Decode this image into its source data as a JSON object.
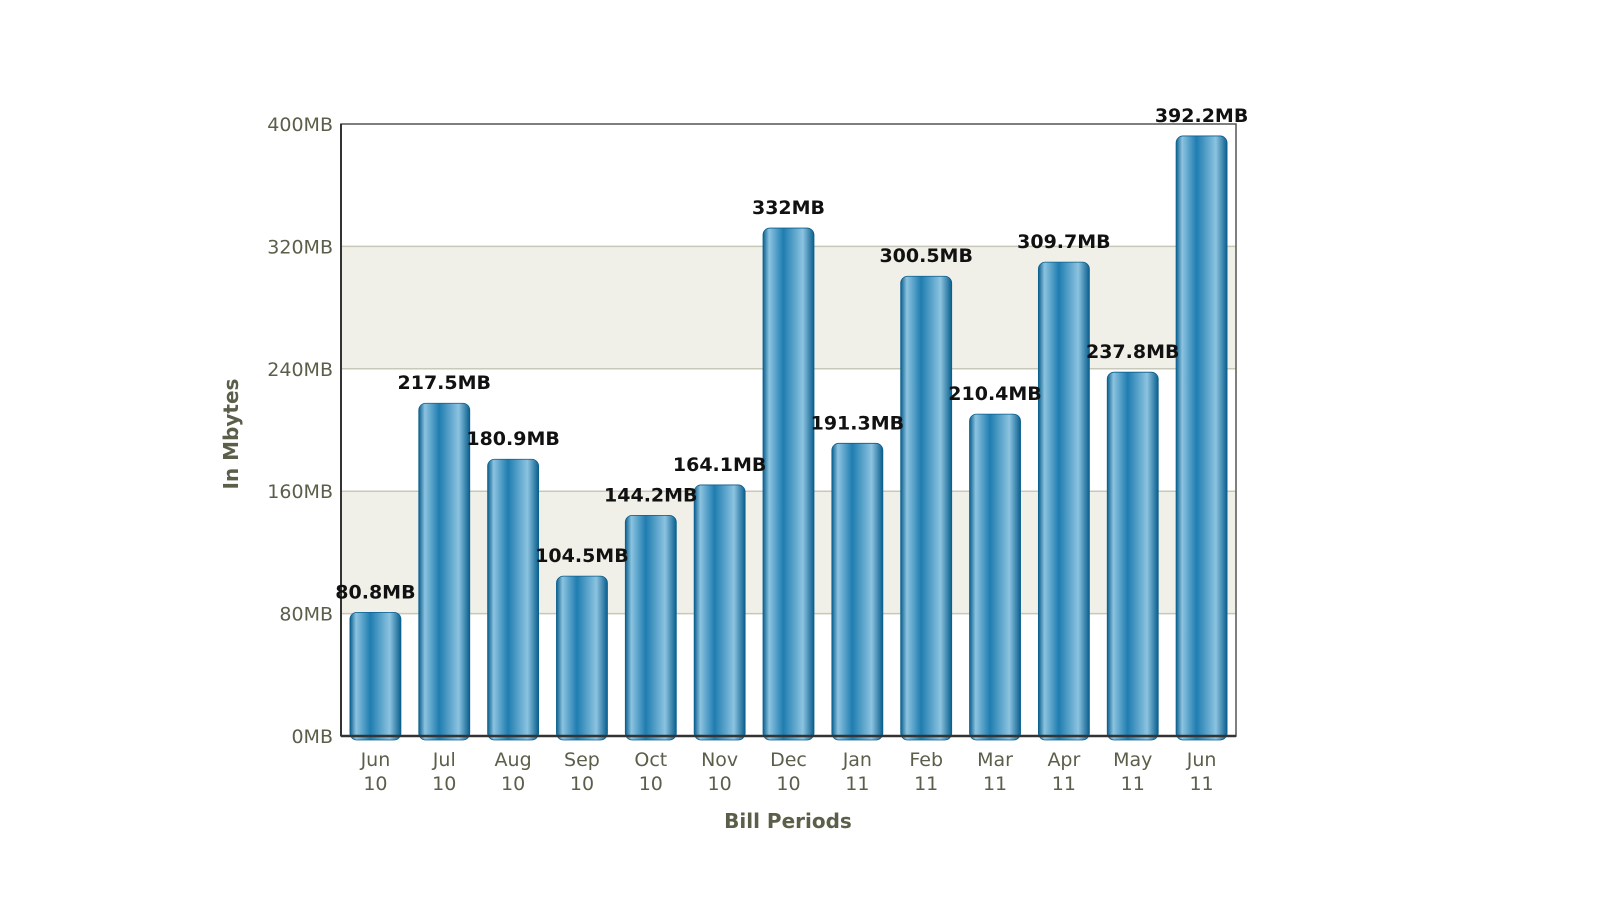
{
  "chart_data": {
    "type": "bar",
    "categories": [
      [
        "Jun",
        "10"
      ],
      [
        "Jul",
        "10"
      ],
      [
        "Aug",
        "10"
      ],
      [
        "Sep",
        "10"
      ],
      [
        "Oct",
        "10"
      ],
      [
        "Nov",
        "10"
      ],
      [
        "Dec",
        "10"
      ],
      [
        "Jan",
        "11"
      ],
      [
        "Feb",
        "11"
      ],
      [
        "Mar",
        "11"
      ],
      [
        "Apr",
        "11"
      ],
      [
        "May",
        "11"
      ],
      [
        "Jun",
        "11"
      ]
    ],
    "values": [
      80.8,
      217.5,
      180.9,
      104.5,
      144.2,
      164.1,
      332,
      191.3,
      300.5,
      210.4,
      309.7,
      237.8,
      392.2
    ],
    "value_labels": [
      "80.8MB",
      "217.5MB",
      "180.9MB",
      "104.5MB",
      "144.2MB",
      "164.1MB",
      "332MB",
      "191.3MB",
      "300.5MB",
      "210.4MB",
      "309.7MB",
      "237.8MB",
      "392.2MB"
    ],
    "xlabel": "Bill Periods",
    "ylabel": "In Mbytes",
    "ylim": [
      0,
      400
    ],
    "yticks": [
      0,
      80,
      160,
      240,
      320,
      400
    ],
    "ytick_labels": [
      "0MB",
      "80MB",
      "160MB",
      "240MB",
      "320MB",
      "400MB"
    ],
    "grid": true,
    "legend": "none",
    "colors": {
      "bar_dark": "#0a5f8e",
      "bar_mid": "#1f7db0",
      "bar_light": "#8cc3e0",
      "band": "#f0f0e8",
      "gridline": "#c8c8b8",
      "axis": "#555555",
      "text": "#5b5f4a"
    }
  }
}
